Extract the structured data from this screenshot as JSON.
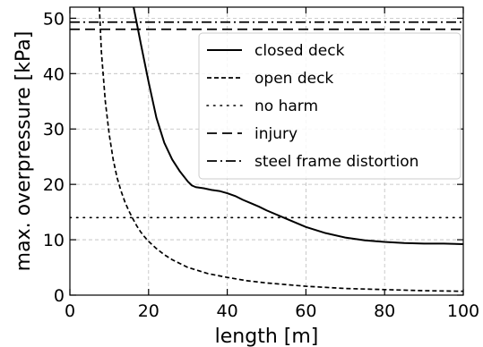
{
  "chart_data": {
    "type": "line",
    "xlabel": "length [m]",
    "ylabel": "max. overpressure [kPa]",
    "xlim": [
      0,
      100
    ],
    "ylim": [
      0,
      52
    ],
    "xticks": [
      0,
      20,
      40,
      60,
      80,
      100
    ],
    "yticks": [
      0,
      10,
      20,
      30,
      40,
      50
    ],
    "xtick_labels": [
      "0",
      "20",
      "40",
      "60",
      "80",
      "100"
    ],
    "ytick_labels": [
      "0",
      "10",
      "20",
      "30",
      "40",
      "50"
    ],
    "grid": true,
    "legend_position": "top-right",
    "series": [
      {
        "name": "closed deck",
        "style": "solid",
        "x": [
          16.2,
          18,
          20,
          22,
          24,
          26,
          28,
          30,
          31,
          32,
          34,
          36,
          38,
          40,
          42,
          44,
          46,
          48,
          50,
          55,
          60,
          65,
          70,
          75,
          80,
          85,
          90,
          95,
          100
        ],
        "y": [
          52,
          45.5,
          38.5,
          32.0,
          27.5,
          24.5,
          22.3,
          20.5,
          19.8,
          19.5,
          19.3,
          19.0,
          18.8,
          18.4,
          17.9,
          17.2,
          16.6,
          16.0,
          15.3,
          13.8,
          12.3,
          11.2,
          10.4,
          9.9,
          9.6,
          9.4,
          9.3,
          9.3,
          9.2
        ]
      },
      {
        "name": "open deck",
        "style": "dashed",
        "x": [
          7.5,
          8,
          9,
          10,
          11,
          12,
          13,
          14,
          15,
          16,
          17,
          18,
          19,
          20,
          22,
          24,
          26,
          28,
          30,
          35,
          40,
          45,
          50,
          60,
          70,
          80,
          90,
          100
        ],
        "y": [
          52,
          44.0,
          35.0,
          29.0,
          24.5,
          21.2,
          18.8,
          16.8,
          15.2,
          13.8,
          12.5,
          11.4,
          10.5,
          9.7,
          8.4,
          7.3,
          6.4,
          5.7,
          5.0,
          3.9,
          3.2,
          2.6,
          2.2,
          1.6,
          1.2,
          1.0,
          0.8,
          0.7
        ]
      },
      {
        "name": "no harm",
        "style": "dotted",
        "x": [
          0,
          100
        ],
        "y": [
          14,
          14
        ]
      },
      {
        "name": "injury",
        "style": "longdash",
        "x": [
          0,
          100
        ],
        "y": [
          48,
          48
        ]
      },
      {
        "name": "steel frame distortion",
        "style": "dashdot",
        "x": [
          0,
          100
        ],
        "y": [
          49.3,
          49.3
        ]
      }
    ]
  }
}
